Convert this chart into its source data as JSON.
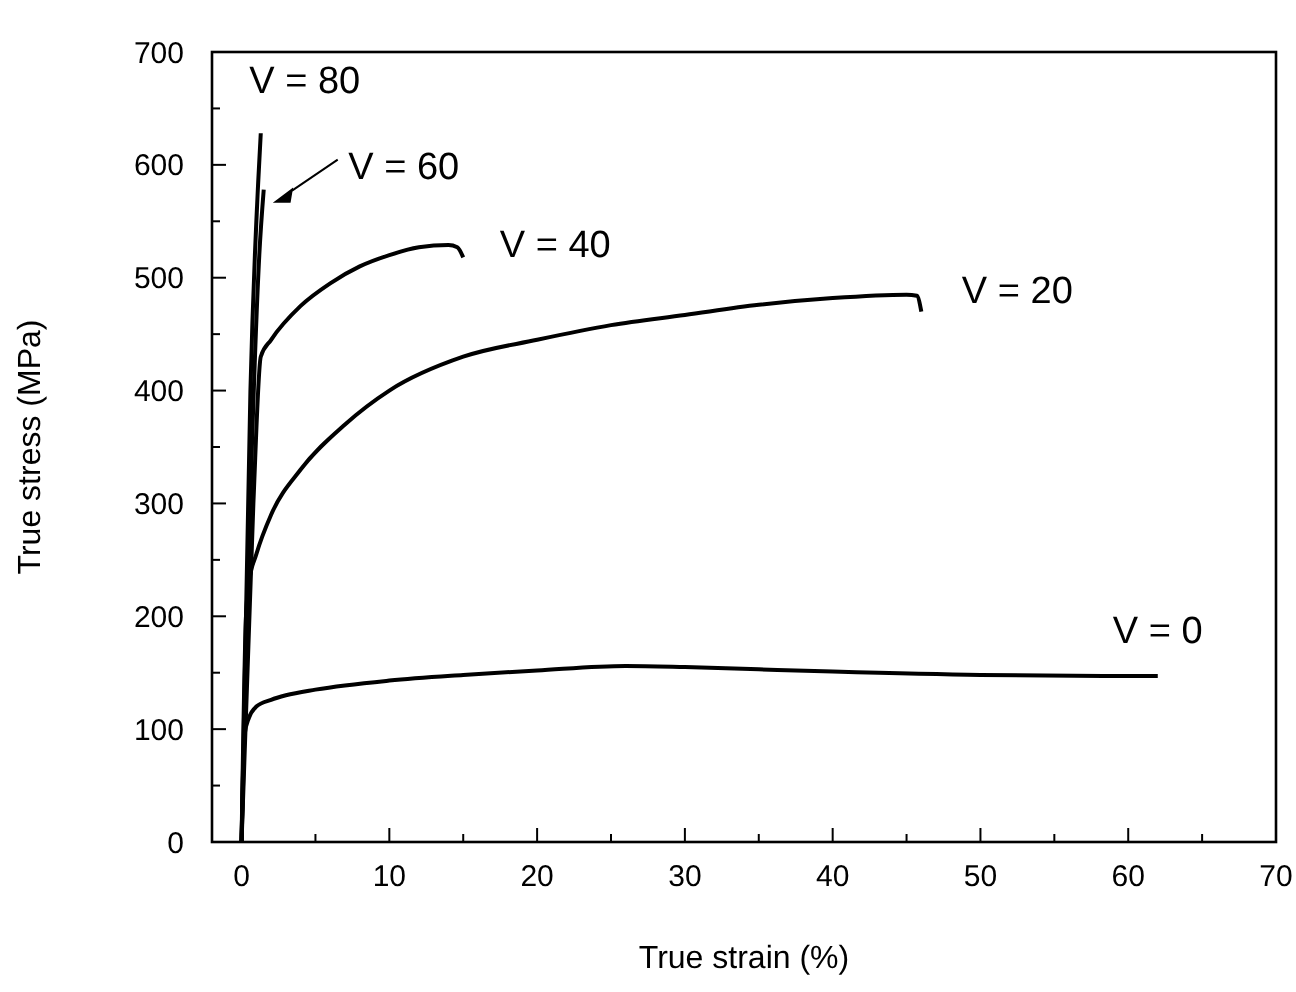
{
  "chart_data": {
    "type": "line",
    "xlabel": "True strain (%)",
    "ylabel": "True stress (MPa)",
    "xlim": [
      -2,
      70
    ],
    "ylim": [
      0,
      700
    ],
    "xticks": [
      0,
      {
        "value": 5,
        "label": null
      },
      10,
      {
        "value": 15,
        "label": null
      },
      20,
      {
        "value": 25,
        "label": null
      },
      30,
      {
        "value": 35,
        "label": null
      },
      40,
      {
        "value": 45,
        "label": null
      },
      50,
      {
        "value": 55,
        "label": null
      },
      60,
      {
        "value": 65,
        "label": null
      },
      70
    ],
    "yticks": [
      0,
      {
        "value": 50,
        "label": null
      },
      100,
      {
        "value": 150,
        "label": null
      },
      200,
      {
        "value": 250,
        "label": null
      },
      300,
      {
        "value": 350,
        "label": null
      },
      400,
      {
        "value": 450,
        "label": null
      },
      500,
      {
        "value": 550,
        "label": null
      },
      600,
      {
        "value": 650,
        "label": null
      },
      700
    ],
    "grid": false,
    "line_style": "solid",
    "series": [
      {
        "name": "V = 0",
        "color": "#000000",
        "x": [
          0,
          0.2,
          0.5,
          1,
          2,
          3,
          5,
          10,
          15,
          20,
          26,
          30,
          35,
          40,
          50,
          62
        ],
        "values": [
          0,
          95,
          110,
          120,
          126,
          130,
          135,
          143,
          148,
          152,
          156,
          155,
          153,
          151,
          148,
          147
        ]
      },
      {
        "name": "V = 20",
        "color": "#000000",
        "x": [
          0,
          0.3,
          0.5,
          1,
          2,
          4,
          7,
          10,
          15,
          20,
          25,
          30,
          35,
          40,
          45,
          45.7,
          46
        ],
        "values": [
          0,
          200,
          230,
          255,
          290,
          330,
          370,
          400,
          430,
          445,
          458,
          467,
          476,
          482,
          485,
          484,
          470
        ]
      },
      {
        "name": "V = 40",
        "color": "#000000",
        "x": [
          0,
          0.8,
          1.3,
          2,
          4,
          6,
          8,
          10,
          12,
          14,
          14.6,
          15
        ],
        "values": [
          0,
          300,
          430,
          445,
          475,
          495,
          510,
          520,
          527,
          529,
          527,
          518
        ]
      },
      {
        "name": "V = 60",
        "color": "#000000",
        "x": [
          0,
          0.7,
          1.2,
          1.5
        ],
        "values": [
          0,
          350,
          520,
          578
        ]
      },
      {
        "name": "V = 80",
        "color": "#000000",
        "x": [
          0,
          0.6,
          1.3
        ],
        "values": [
          0,
          400,
          628
        ]
      }
    ]
  }
}
